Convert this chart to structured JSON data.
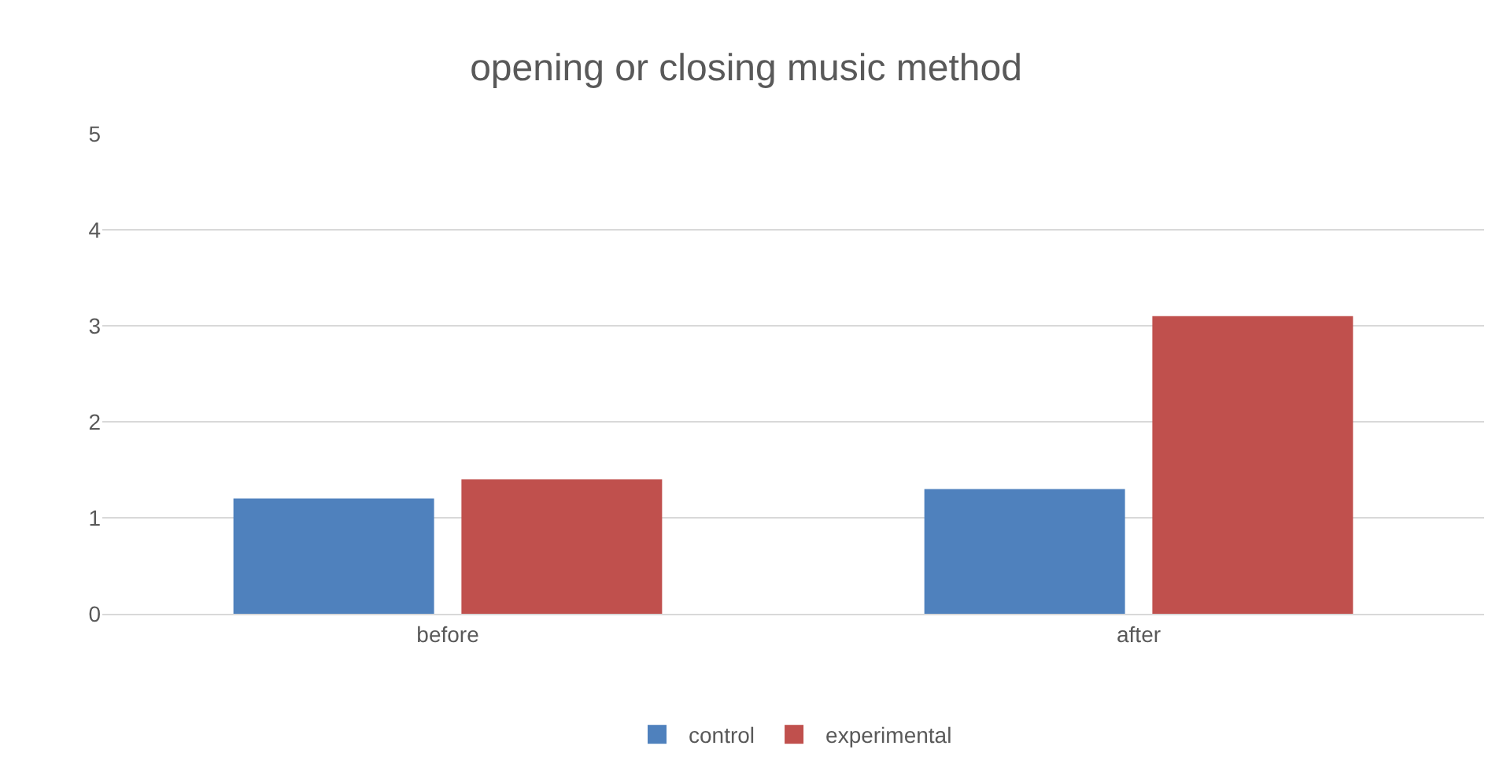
{
  "chart_data": {
    "type": "bar",
    "title": "opening or closing music method",
    "categories": [
      "before",
      "after"
    ],
    "series": [
      {
        "name": "control",
        "color": "#4f81bd",
        "values": [
          1.2,
          1.3
        ]
      },
      {
        "name": "experimental",
        "color": "#c0504d",
        "values": [
          1.4,
          3.1
        ]
      }
    ],
    "ylim": [
      0,
      5
    ],
    "yticks": [
      0,
      1,
      2,
      3,
      4,
      5
    ],
    "grid": "y",
    "legend": "bottom"
  }
}
